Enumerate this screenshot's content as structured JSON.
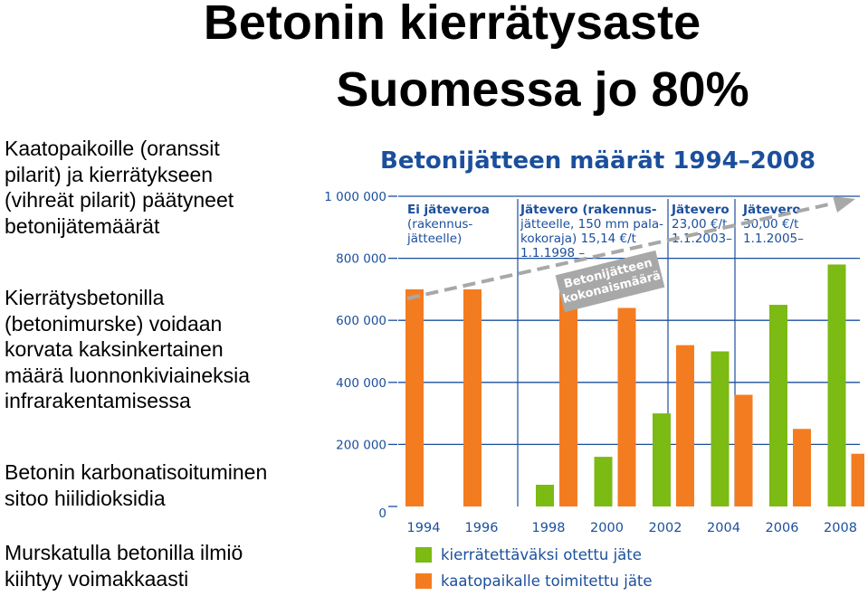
{
  "slide": {
    "title_line1": "Betonin kierrätysaste",
    "title_line2": "Suomessa jo 80%",
    "paragraph1": [
      "Kaatopaikoille (oranssit",
      "pilarit) ja kierrätykseen",
      "(vihreät pilarit) päätyneet",
      "betonijätemäärät"
    ],
    "paragraph2": [
      "Kierrätysbetonilla",
      "(betonimurske) voidaan",
      "korvata kaksinkertainen",
      "määrä luonnonkiviaineksia",
      "infrarakentamisessa"
    ],
    "paragraph3": [
      "Betonin karbonatisoituminen",
      "sitoo hiilidioksidia"
    ],
    "paragraph4": [
      "Murskatulla betonilla ilmiö",
      "kiihtyy voimakkaasti"
    ]
  },
  "chart_data": {
    "type": "bar",
    "title": "Betonijätteen määrät 1994–2008",
    "categories": [
      "1994",
      "1996",
      "1998",
      "2000",
      "2002",
      "2004",
      "2006",
      "2008"
    ],
    "series": [
      {
        "name": "kierrätettäväksi otettu jäte",
        "color": "#7cba14",
        "values": [
          0,
          0,
          70000,
          160000,
          300000,
          500000,
          650000,
          780000
        ]
      },
      {
        "name": "kaatopaikalle toimitettu jäte",
        "color": "#f47c20",
        "values": [
          700000,
          700000,
          700000,
          640000,
          520000,
          360000,
          250000,
          170000
        ]
      }
    ],
    "ylim": [
      0,
      1000000
    ],
    "yticks": [
      "0",
      "200 000",
      "400 000",
      "600 000",
      "800 000",
      "1 000 000"
    ],
    "periods": [
      [
        "Ei jäteveroa",
        "(rakennus-",
        "jätteelle)"
      ],
      [
        "Jätevero (rakennus-",
        "jätteelle, 150 mm pala-",
        "kokoraja) 15,14 €/t",
        "1.1.1998 –"
      ],
      [
        "Jätevero",
        "23,00 €/t",
        "1.1.2003–"
      ],
      [
        "Jätevero",
        "30,00 €/t",
        "1.1.2005–"
      ]
    ],
    "trend_label": [
      "Betonijätteen",
      "kokonaismäärä"
    ],
    "trend_color": "#a8a8a8",
    "text_color": "#1b4f9c",
    "grid": true,
    "legend_position": "bottom"
  }
}
